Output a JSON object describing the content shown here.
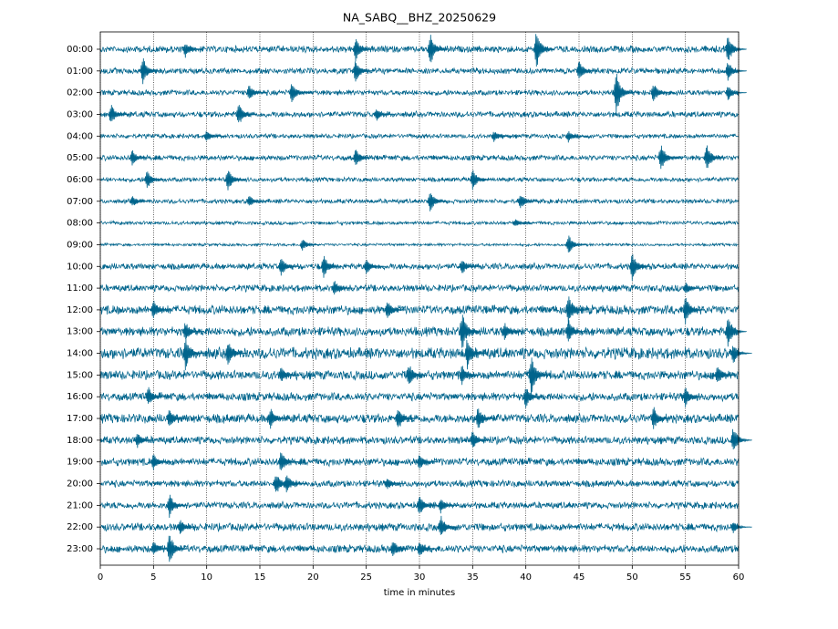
{
  "chart_data": {
    "type": "helicorder",
    "title": "NA_SABQ__BHZ_20250629",
    "xlabel": "time in minutes",
    "xlim": [
      0,
      60
    ],
    "xticks": [
      0,
      5,
      10,
      15,
      20,
      25,
      30,
      35,
      40,
      45,
      50,
      55,
      60
    ],
    "grid": true,
    "color": "#00648c",
    "series": [
      {
        "name": "00:00",
        "noise": 0.15,
        "events": [
          {
            "x": 41,
            "amp": 1.0
          },
          {
            "x": 31,
            "amp": 0.8
          },
          {
            "x": 59,
            "amp": 0.7
          },
          {
            "x": 24,
            "amp": 0.6
          },
          {
            "x": 8,
            "amp": 0.4
          }
        ]
      },
      {
        "name": "01:00",
        "noise": 0.13,
        "events": [
          {
            "x": 4,
            "amp": 0.7
          },
          {
            "x": 24,
            "amp": 0.6
          },
          {
            "x": 45,
            "amp": 0.5
          },
          {
            "x": 59,
            "amp": 0.5
          }
        ]
      },
      {
        "name": "02:00",
        "noise": 0.12,
        "events": [
          {
            "x": 48.5,
            "amp": 1.0
          },
          {
            "x": 52,
            "amp": 0.5
          },
          {
            "x": 18,
            "amp": 0.5
          },
          {
            "x": 14,
            "amp": 0.4
          },
          {
            "x": 59,
            "amp": 0.4
          }
        ]
      },
      {
        "name": "03:00",
        "noise": 0.13,
        "events": [
          {
            "x": 1,
            "amp": 0.5
          },
          {
            "x": 13,
            "amp": 0.6
          },
          {
            "x": 26,
            "amp": 0.3
          }
        ]
      },
      {
        "name": "04:00",
        "noise": 0.1,
        "events": [
          {
            "x": 37,
            "amp": 0.3
          },
          {
            "x": 44,
            "amp": 0.3
          },
          {
            "x": 10,
            "amp": 0.3
          }
        ]
      },
      {
        "name": "05:00",
        "noise": 0.12,
        "events": [
          {
            "x": 52.7,
            "amp": 0.7
          },
          {
            "x": 57,
            "amp": 0.7
          },
          {
            "x": 24,
            "amp": 0.5
          },
          {
            "x": 3,
            "amp": 0.4
          }
        ]
      },
      {
        "name": "06:00",
        "noise": 0.1,
        "events": [
          {
            "x": 4.4,
            "amp": 0.5
          },
          {
            "x": 12,
            "amp": 0.6
          },
          {
            "x": 35,
            "amp": 0.5
          }
        ]
      },
      {
        "name": "07:00",
        "noise": 0.1,
        "events": [
          {
            "x": 3,
            "amp": 0.3
          },
          {
            "x": 31,
            "amp": 0.5
          },
          {
            "x": 39.5,
            "amp": 0.4
          },
          {
            "x": 14,
            "amp": 0.3
          }
        ]
      },
      {
        "name": "08:00",
        "noise": 0.08,
        "events": [
          {
            "x": 39,
            "amp": 0.2
          }
        ]
      },
      {
        "name": "09:00",
        "noise": 0.06,
        "events": [
          {
            "x": 44,
            "amp": 0.5
          },
          {
            "x": 19,
            "amp": 0.3
          }
        ]
      },
      {
        "name": "10:00",
        "noise": 0.14,
        "events": [
          {
            "x": 21,
            "amp": 0.6
          },
          {
            "x": 50,
            "amp": 0.7
          },
          {
            "x": 17,
            "amp": 0.5
          },
          {
            "x": 34,
            "amp": 0.4
          },
          {
            "x": 25,
            "amp": 0.4
          }
        ]
      },
      {
        "name": "11:00",
        "noise": 0.15,
        "events": [
          {
            "x": 22,
            "amp": 0.4
          },
          {
            "x": 55,
            "amp": 0.3
          }
        ]
      },
      {
        "name": "12:00",
        "noise": 0.2,
        "events": [
          {
            "x": 44,
            "amp": 0.8
          },
          {
            "x": 55,
            "amp": 0.7
          },
          {
            "x": 5,
            "amp": 0.5
          },
          {
            "x": 27,
            "amp": 0.5
          }
        ]
      },
      {
        "name": "13:00",
        "noise": 0.2,
        "events": [
          {
            "x": 34,
            "amp": 1.0
          },
          {
            "x": 44,
            "amp": 0.6
          },
          {
            "x": 59,
            "amp": 0.8
          },
          {
            "x": 8,
            "amp": 0.5
          },
          {
            "x": 38,
            "amp": 0.5
          }
        ]
      },
      {
        "name": "14:00",
        "noise": 0.25,
        "events": [
          {
            "x": 8,
            "amp": 0.8
          },
          {
            "x": 12,
            "amp": 0.7
          },
          {
            "x": 34.5,
            "amp": 0.8
          },
          {
            "x": 59.5,
            "amp": 0.5
          }
        ]
      },
      {
        "name": "15:00",
        "noise": 0.2,
        "events": [
          {
            "x": 29,
            "amp": 0.6
          },
          {
            "x": 40.5,
            "amp": 1.0
          },
          {
            "x": 34,
            "amp": 0.5
          },
          {
            "x": 17,
            "amp": 0.4
          },
          {
            "x": 58,
            "amp": 0.5
          }
        ]
      },
      {
        "name": "16:00",
        "noise": 0.18,
        "events": [
          {
            "x": 40,
            "amp": 0.6
          },
          {
            "x": 4.5,
            "amp": 0.5
          },
          {
            "x": 55,
            "amp": 0.5
          }
        ]
      },
      {
        "name": "17:00",
        "noise": 0.2,
        "events": [
          {
            "x": 28,
            "amp": 0.6
          },
          {
            "x": 35.5,
            "amp": 0.6
          },
          {
            "x": 52,
            "amp": 0.6
          },
          {
            "x": 6.5,
            "amp": 0.5
          },
          {
            "x": 16,
            "amp": 0.5
          }
        ]
      },
      {
        "name": "18:00",
        "noise": 0.17,
        "events": [
          {
            "x": 59.5,
            "amp": 0.7
          },
          {
            "x": 35,
            "amp": 0.5
          },
          {
            "x": 3.5,
            "amp": 0.4
          }
        ]
      },
      {
        "name": "19:00",
        "noise": 0.17,
        "events": [
          {
            "x": 17,
            "amp": 0.6
          },
          {
            "x": 5,
            "amp": 0.4
          },
          {
            "x": 30,
            "amp": 0.4
          }
        ]
      },
      {
        "name": "20:00",
        "noise": 0.15,
        "events": [
          {
            "x": 16.5,
            "amp": 0.6
          },
          {
            "x": 17.5,
            "amp": 0.5
          },
          {
            "x": 27,
            "amp": 0.3
          }
        ]
      },
      {
        "name": "21:00",
        "noise": 0.15,
        "events": [
          {
            "x": 6.5,
            "amp": 0.6
          },
          {
            "x": 30,
            "amp": 0.5
          },
          {
            "x": 32,
            "amp": 0.4
          }
        ]
      },
      {
        "name": "22:00",
        "noise": 0.17,
        "events": [
          {
            "x": 7.5,
            "amp": 0.4
          },
          {
            "x": 32,
            "amp": 0.6
          },
          {
            "x": 59.5,
            "amp": 0.3
          }
        ]
      },
      {
        "name": "23:00",
        "noise": 0.17,
        "events": [
          {
            "x": 6.5,
            "amp": 0.8
          },
          {
            "x": 27.5,
            "amp": 0.5
          },
          {
            "x": 5,
            "amp": 0.4
          },
          {
            "x": 30,
            "amp": 0.4
          }
        ]
      }
    ]
  }
}
